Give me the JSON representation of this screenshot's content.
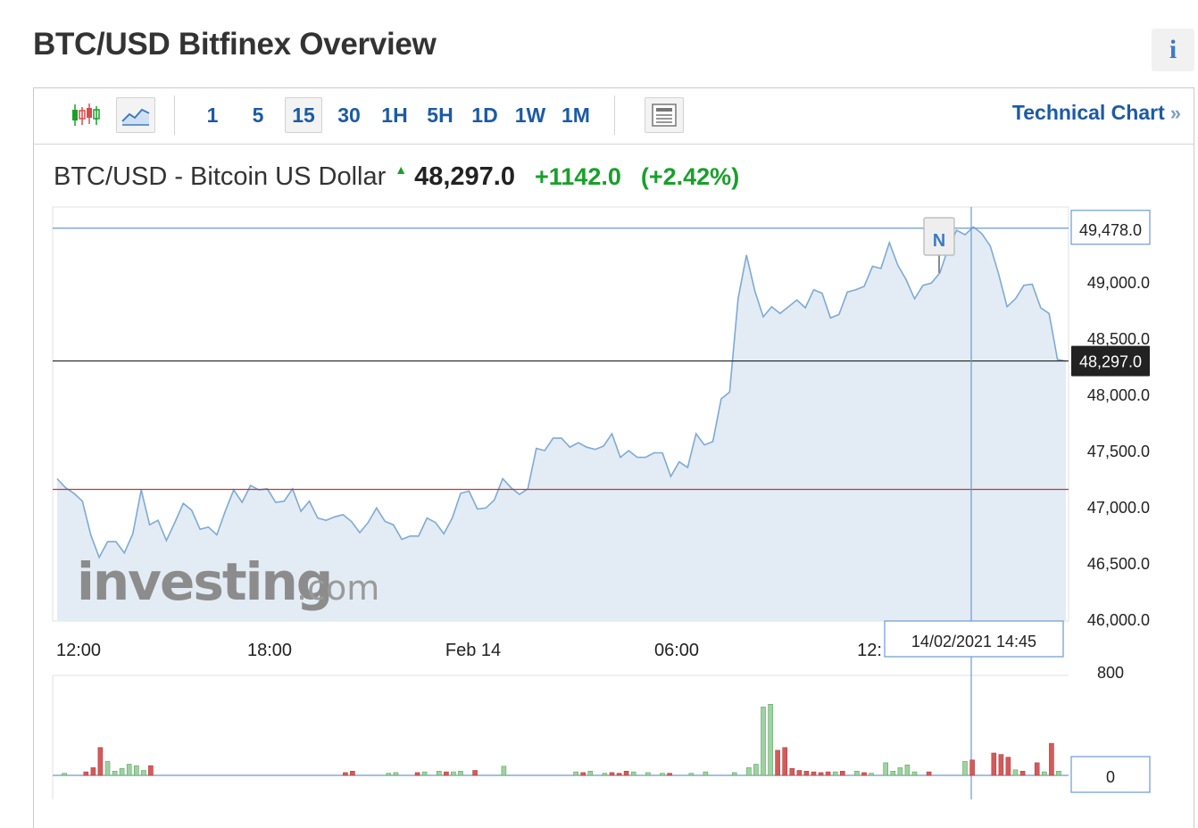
{
  "page": {
    "title": "BTC/USD Bitfinex Overview",
    "info_label": "i"
  },
  "toolbar": {
    "timeframes": [
      "1",
      "5",
      "15",
      "30",
      "1H",
      "5H",
      "1D",
      "1W",
      "1M"
    ],
    "selected_timeframe": "15",
    "technical_chart_label": "Technical Chart",
    "technical_chart_chevron": "»",
    "icons": [
      "candlestick-icon",
      "line-chart-icon",
      "news-icon"
    ]
  },
  "instrument": {
    "name": "BTC/USD - Bitcoin US Dollar",
    "price": "48,297.0",
    "change": "+1142.0",
    "change_pct": "(+2.42%)",
    "direction_icon": "up-arrow-icon"
  },
  "colors": {
    "line": "#7eaad4",
    "area": "#e3ecf4",
    "up": "#19a02b",
    "down": "#d94b4b",
    "link": "#1c5aa5",
    "ref_line": "#cc3333"
  },
  "chart_data": {
    "type": "area",
    "ylim": [
      46000,
      49600
    ],
    "y_ticks": [
      "49,000.0",
      "48,500.0",
      "48,000.0",
      "47,500.0",
      "47,000.0",
      "46,500.0",
      "46,000.0"
    ],
    "y_tick_values": [
      49000,
      48500,
      48000,
      47500,
      47000,
      46500,
      46000
    ],
    "x_ticks": [
      "12:00",
      "18:00",
      "Feb 14",
      "06:00",
      "12:"
    ],
    "price_series": [
      47250,
      47170,
      47120,
      47050,
      46750,
      46550,
      46690,
      46690,
      46590,
      46760,
      47150,
      46840,
      46880,
      46700,
      46860,
      47030,
      46970,
      46800,
      46820,
      46750,
      46960,
      47150,
      47040,
      47190,
      47150,
      47160,
      47040,
      47050,
      47160,
      46960,
      47050,
      46900,
      46880,
      46910,
      46930,
      46870,
      46770,
      46860,
      46990,
      46870,
      46840,
      46710,
      46740,
      46740,
      46900,
      46860,
      46760,
      46900,
      47120,
      47140,
      46980,
      46990,
      47060,
      47250,
      47170,
      47110,
      47160,
      47520,
      47500,
      47610,
      47610,
      47530,
      47570,
      47530,
      47510,
      47540,
      47650,
      47440,
      47500,
      47440,
      47440,
      47480,
      47480,
      47270,
      47400,
      47350,
      47650,
      47550,
      47580,
      47960,
      48020,
      48850,
      49240,
      48920,
      48690,
      48780,
      48720,
      48780,
      48840,
      48770,
      48930,
      48900,
      48680,
      48710,
      48910,
      48930,
      48960,
      49140,
      49120,
      49350,
      49150,
      49020,
      48850,
      48970,
      48990,
      49080,
      49300,
      49460,
      49420,
      49490,
      49430,
      49320,
      49070,
      48780,
      48850,
      48970,
      48980,
      48770,
      48720,
      48310,
      48297
    ],
    "last_price_label": "48,297.0",
    "last_price": 48297,
    "high_price_label": "49,478.0",
    "high_price": 49478,
    "reference_price": 47155,
    "crosshair_time": "14/02/2021 14:45",
    "news_marker": "N",
    "volume_axis_labels": [
      "800",
      "0"
    ],
    "volume_bars": [
      {
        "i": 1,
        "v": 15,
        "c": "up"
      },
      {
        "i": 4,
        "v": 25,
        "c": "down"
      },
      {
        "i": 5,
        "v": 55,
        "c": "down"
      },
      {
        "i": 6,
        "v": 200,
        "c": "down"
      },
      {
        "i": 7,
        "v": 100,
        "c": "up"
      },
      {
        "i": 8,
        "v": 30,
        "c": "up"
      },
      {
        "i": 9,
        "v": 50,
        "c": "up"
      },
      {
        "i": 10,
        "v": 80,
        "c": "up"
      },
      {
        "i": 11,
        "v": 70,
        "c": "up"
      },
      {
        "i": 12,
        "v": 35,
        "c": "up"
      },
      {
        "i": 13,
        "v": 70,
        "c": "down"
      },
      {
        "i": 40,
        "v": 20,
        "c": "down"
      },
      {
        "i": 41,
        "v": 30,
        "c": "down"
      },
      {
        "i": 46,
        "v": 15,
        "c": "up"
      },
      {
        "i": 47,
        "v": 20,
        "c": "up"
      },
      {
        "i": 50,
        "v": 20,
        "c": "down"
      },
      {
        "i": 51,
        "v": 25,
        "c": "up"
      },
      {
        "i": 53,
        "v": 30,
        "c": "up"
      },
      {
        "i": 54,
        "v": 25,
        "c": "down"
      },
      {
        "i": 55,
        "v": 25,
        "c": "up"
      },
      {
        "i": 56,
        "v": 30,
        "c": "up"
      },
      {
        "i": 58,
        "v": 35,
        "c": "down"
      },
      {
        "i": 62,
        "v": 65,
        "c": "up"
      },
      {
        "i": 72,
        "v": 25,
        "c": "up"
      },
      {
        "i": 73,
        "v": 20,
        "c": "down"
      },
      {
        "i": 74,
        "v": 30,
        "c": "up"
      },
      {
        "i": 76,
        "v": 15,
        "c": "up"
      },
      {
        "i": 77,
        "v": 20,
        "c": "down"
      },
      {
        "i": 78,
        "v": 15,
        "c": "down"
      },
      {
        "i": 79,
        "v": 30,
        "c": "down"
      },
      {
        "i": 80,
        "v": 25,
        "c": "up"
      },
      {
        "i": 82,
        "v": 20,
        "c": "up"
      },
      {
        "i": 84,
        "v": 15,
        "c": "up"
      },
      {
        "i": 85,
        "v": 15,
        "c": "down"
      },
      {
        "i": 88,
        "v": 15,
        "c": "up"
      },
      {
        "i": 90,
        "v": 25,
        "c": "up"
      },
      {
        "i": 94,
        "v": 20,
        "c": "up"
      },
      {
        "i": 96,
        "v": 55,
        "c": "up"
      },
      {
        "i": 97,
        "v": 80,
        "c": "up"
      },
      {
        "i": 98,
        "v": 490,
        "c": "up"
      },
      {
        "i": 99,
        "v": 510,
        "c": "up"
      },
      {
        "i": 100,
        "v": 180,
        "c": "down"
      },
      {
        "i": 101,
        "v": 200,
        "c": "down"
      },
      {
        "i": 102,
        "v": 50,
        "c": "down"
      },
      {
        "i": 103,
        "v": 35,
        "c": "down"
      },
      {
        "i": 104,
        "v": 30,
        "c": "down"
      },
      {
        "i": 105,
        "v": 25,
        "c": "down"
      },
      {
        "i": 106,
        "v": 20,
        "c": "down"
      },
      {
        "i": 107,
        "v": 25,
        "c": "down"
      },
      {
        "i": 108,
        "v": 25,
        "c": "up"
      },
      {
        "i": 109,
        "v": 30,
        "c": "down"
      },
      {
        "i": 111,
        "v": 30,
        "c": "up"
      },
      {
        "i": 112,
        "v": 20,
        "c": "down"
      },
      {
        "i": 113,
        "v": 15,
        "c": "up"
      },
      {
        "i": 115,
        "v": 90,
        "c": "up"
      },
      {
        "i": 116,
        "v": 30,
        "c": "up"
      },
      {
        "i": 117,
        "v": 55,
        "c": "up"
      },
      {
        "i": 118,
        "v": 75,
        "c": "up"
      },
      {
        "i": 119,
        "v": 25,
        "c": "up"
      },
      {
        "i": 121,
        "v": 25,
        "c": "down"
      },
      {
        "i": 126,
        "v": 100,
        "c": "up"
      },
      {
        "i": 127,
        "v": 110,
        "c": "down"
      },
      {
        "i": 130,
        "v": 160,
        "c": "down"
      },
      {
        "i": 131,
        "v": 150,
        "c": "down"
      },
      {
        "i": 132,
        "v": 130,
        "c": "down"
      },
      {
        "i": 133,
        "v": 40,
        "c": "up"
      },
      {
        "i": 134,
        "v": 30,
        "c": "down"
      },
      {
        "i": 136,
        "v": 90,
        "c": "down"
      },
      {
        "i": 137,
        "v": 25,
        "c": "up"
      },
      {
        "i": 138,
        "v": 230,
        "c": "down"
      },
      {
        "i": 139,
        "v": 30,
        "c": "up"
      }
    ]
  }
}
